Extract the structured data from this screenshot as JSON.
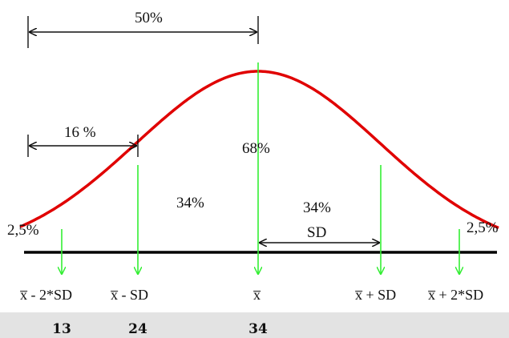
{
  "colors": {
    "curve": "#e00000",
    "marker": "#33ee33",
    "text": "#111111",
    "axis": "#000000",
    "panel": "#ffffff",
    "background": "#e3e3e3"
  },
  "labels": {
    "top_span": "50%",
    "left_span": "16 %",
    "center": "68%",
    "left_middle": "34%",
    "right_middle": "34%",
    "sd_span": "SD",
    "tail_left": "2,5%",
    "tail_right": "2,5%"
  },
  "axis_labels": {
    "minus2sd": "x̅ - 2*SD",
    "minus1sd": "x̅ - SD",
    "mean": "x̅",
    "plus1sd": "x̅ + SD",
    "plus2sd": "x̅ + 2*SD"
  },
  "values": {
    "minus2sd": "13",
    "minus1sd": "24",
    "mean": "34"
  }
}
